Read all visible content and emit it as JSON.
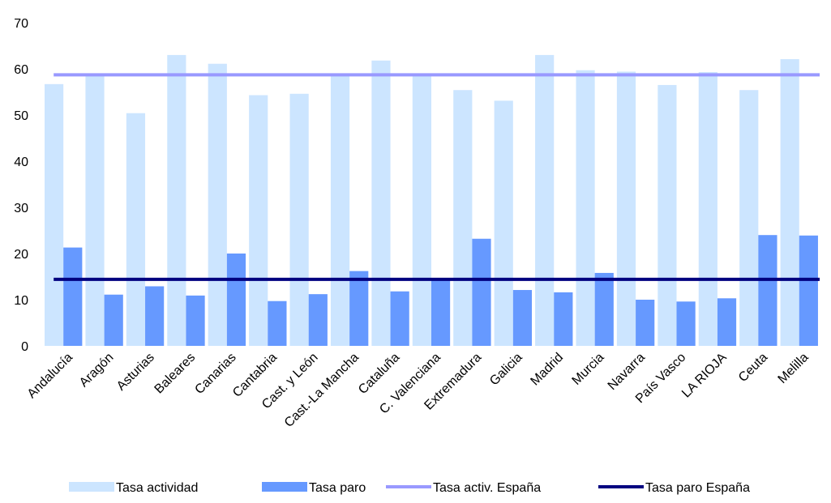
{
  "chart_data": {
    "type": "bar",
    "title": "",
    "xlabel": "",
    "ylabel": "",
    "ylim": [
      0,
      70
    ],
    "yticks": [
      0,
      10,
      20,
      30,
      40,
      50,
      60,
      70
    ],
    "grid": false,
    "legend_position": "bottom",
    "categories": [
      "Andalucía",
      "Aragón",
      "Asturias",
      "Baleares",
      "Canarias",
      "Cantabria",
      "Cast. y León",
      "Cast.-La Mancha",
      "Cataluña",
      "C. Valenciana",
      "Extremadura",
      "Galicia",
      "Madrid",
      "Murcia",
      "Navarra",
      "País Vasco",
      "LA RIOJA",
      "Ceuta",
      "Melilla"
    ],
    "series": [
      {
        "name": "Tasa actividad",
        "kind": "bar",
        "color": "#CCE5FF",
        "values": [
          56.7,
          58.7,
          50.4,
          63.0,
          61.1,
          54.3,
          54.6,
          58.8,
          61.8,
          58.8,
          55.4,
          53.1,
          63.0,
          59.7,
          59.4,
          56.5,
          59.3,
          55.4,
          62.1
        ]
      },
      {
        "name": "Tasa paro",
        "kind": "bar",
        "color": "#6699FF",
        "values": [
          21.3,
          11.1,
          12.9,
          10.9,
          20.0,
          9.7,
          11.2,
          16.2,
          11.8,
          14.6,
          23.2,
          12.1,
          11.6,
          15.8,
          10.0,
          9.6,
          10.3,
          24.0,
          23.9
        ]
      },
      {
        "name": "Tasa activ. España",
        "kind": "line",
        "color": "#9999FF",
        "value": 58.7
      },
      {
        "name": "Tasa paro España",
        "kind": "line",
        "color": "#000080",
        "value": 14.4
      }
    ]
  }
}
